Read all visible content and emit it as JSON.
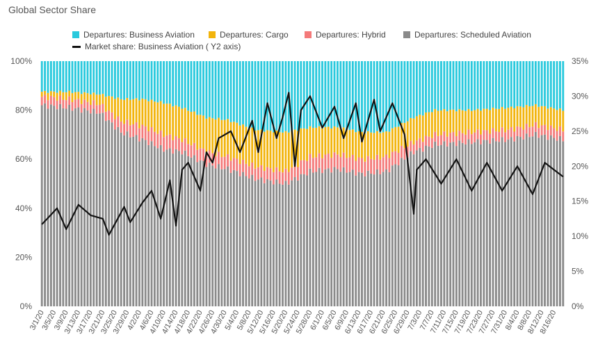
{
  "chart_title": "Global Sector Share",
  "colors": {
    "business": "#29c9dd",
    "cargo": "#f2b40c",
    "hybrid": "#f47a7a",
    "scheduled": "#8a8a8a",
    "line": "#111111"
  },
  "legend": [
    {
      "label": "Departures: Business Aviation",
      "color": "#29c9dd",
      "kind": "box"
    },
    {
      "label": "Departures: Cargo",
      "color": "#f2b40c",
      "kind": "box"
    },
    {
      "label": "Departures: Hybrid",
      "color": "#f47a7a",
      "kind": "box"
    },
    {
      "label": "Departures: Scheduled Aviation",
      "color": "#8a8a8a",
      "kind": "box"
    },
    {
      "label": "Market share: Business Aviation ( Y2 axis)",
      "color": "#111111",
      "kind": "line"
    }
  ],
  "chart_data": {
    "type": "bar",
    "stacked": true,
    "start_date": "2020-03-01",
    "end_date": "2020-08-19",
    "y_ticks": [
      "0%",
      "20%",
      "40%",
      "60%",
      "80%",
      "100%"
    ],
    "y2_ticks": [
      "0%",
      "5%",
      "10%",
      "15%",
      "20%",
      "25%",
      "30%",
      "35%"
    ],
    "x_tick_labels": [
      "3/1/20",
      "3/5/20",
      "3/9/20",
      "3/13/20",
      "3/17/20",
      "3/21/20",
      "3/25/20",
      "3/29/20",
      "4/2/20",
      "4/6/20",
      "4/10/20",
      "4/14/20",
      "4/18/20",
      "4/22/20",
      "4/26/20",
      "4/30/20",
      "5/4/20",
      "5/8/20",
      "5/12/20",
      "5/16/20",
      "5/20/20",
      "5/24/20",
      "5/28/20",
      "6/1/20",
      "6/5/20",
      "6/9/20",
      "6/13/20",
      "6/17/20",
      "6/21/20",
      "6/25/20",
      "6/29/20",
      "7/3/20",
      "7/7/20",
      "7/11/20",
      "7/15/20",
      "7/19/20",
      "7/23/20",
      "7/27/20",
      "7/31/20",
      "8/4/20",
      "8/8/20",
      "8/12/20",
      "8/16/20"
    ],
    "ylim": [
      0,
      100
    ],
    "y2lim": [
      0,
      35
    ],
    "stack_anchors": {
      "dates": [
        "2020-03-01",
        "2020-03-10",
        "2020-03-20",
        "2020-03-27",
        "2020-04-03",
        "2020-04-10",
        "2020-04-16",
        "2020-04-24",
        "2020-05-01",
        "2020-05-10",
        "2020-05-20",
        "2020-05-28",
        "2020-06-06",
        "2020-06-14",
        "2020-06-22",
        "2020-07-01",
        "2020-07-08",
        "2020-07-20",
        "2020-08-01",
        "2020-08-10",
        "2020-08-19"
      ],
      "scheduled": [
        82,
        81,
        79,
        71,
        68,
        64,
        63,
        58,
        56,
        52,
        50,
        55,
        56,
        54,
        55,
        63,
        66,
        67,
        68,
        70,
        68
      ],
      "hybrid": [
        3.5,
        3.5,
        3.5,
        4.5,
        5.5,
        6,
        5,
        5,
        5,
        5,
        5,
        6,
        6,
        6,
        6,
        4,
        4,
        4,
        4,
        4,
        4
      ],
      "cargo": [
        2,
        3,
        4,
        9,
        11,
        13,
        13,
        14,
        15,
        15,
        16,
        12,
        11,
        11,
        10,
        10,
        10,
        9,
        9,
        8,
        8
      ]
    },
    "market_share_anchors": {
      "dates": [
        "2020-03-01",
        "2020-03-06",
        "2020-03-09",
        "2020-03-13",
        "2020-03-17",
        "2020-03-21",
        "2020-03-23",
        "2020-03-28",
        "2020-03-30",
        "2020-04-03",
        "2020-04-06",
        "2020-04-09",
        "2020-04-12",
        "2020-04-14",
        "2020-04-16",
        "2020-04-18",
        "2020-04-22",
        "2020-04-24",
        "2020-04-26",
        "2020-04-28",
        "2020-05-02",
        "2020-05-05",
        "2020-05-09",
        "2020-05-11",
        "2020-05-14",
        "2020-05-17",
        "2020-05-19",
        "2020-05-21",
        "2020-05-23",
        "2020-05-25",
        "2020-05-28",
        "2020-06-01",
        "2020-06-05",
        "2020-06-08",
        "2020-06-12",
        "2020-06-14",
        "2020-06-18",
        "2020-06-20",
        "2020-06-24",
        "2020-06-28",
        "2020-07-01",
        "2020-07-02",
        "2020-07-05",
        "2020-07-10",
        "2020-07-15",
        "2020-07-20",
        "2020-07-25",
        "2020-07-30",
        "2020-08-04",
        "2020-08-09",
        "2020-08-13",
        "2020-08-19"
      ],
      "values": [
        11.7,
        14,
        11,
        14.5,
        13,
        12.5,
        10.2,
        14.2,
        12,
        14.8,
        16.5,
        12.5,
        18,
        11.5,
        19.5,
        20.5,
        16.5,
        22,
        20.5,
        24,
        25,
        22,
        26.5,
        22,
        29,
        24,
        27,
        30.5,
        20,
        28,
        30,
        25.5,
        28.5,
        24,
        29,
        23.5,
        29.5,
        25,
        29,
        24.5,
        13.2,
        19.5,
        21,
        17.5,
        21,
        16.5,
        20.5,
        16.5,
        20,
        16,
        20.5,
        18.5
      ]
    }
  }
}
